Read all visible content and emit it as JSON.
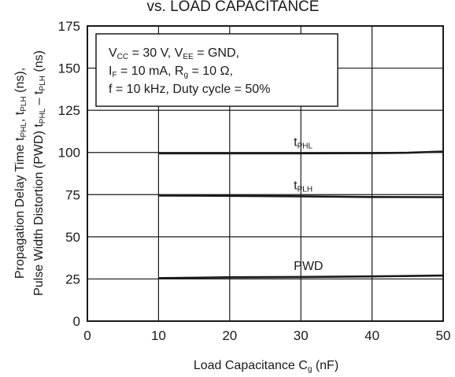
{
  "chart_data": {
    "type": "line",
    "title": "vs. LOAD CAPACITANCE",
    "xlabel": {
      "main": "Load Capacitance  C",
      "sub": "g",
      "unit": " (nF)"
    },
    "ylabel": {
      "line1": [
        "Propagation Delay Time  t",
        "PHL",
        ", t",
        "PLH",
        " (ns),"
      ],
      "line2": [
        "Pulse Width Distortion (PWD)  t",
        "PHL",
        " – t",
        "PLH",
        " (ns)"
      ]
    },
    "xlim": [
      0,
      50
    ],
    "ylim": [
      0,
      175
    ],
    "xticks": [
      0,
      10,
      20,
      30,
      40,
      50
    ],
    "yticks": [
      0,
      25,
      50,
      75,
      100,
      125,
      150,
      175
    ],
    "grid": true,
    "series": [
      {
        "name": "tPHL",
        "label_main": "t",
        "label_sub": "PHL",
        "x": [
          10,
          20,
          30,
          40,
          45,
          50
        ],
        "y": [
          99.5,
          99.5,
          99.5,
          99.6,
          99.8,
          100.5
        ]
      },
      {
        "name": "tPLH",
        "label_main": "t",
        "label_sub": "PLH",
        "x": [
          10,
          20,
          30,
          40,
          50
        ],
        "y": [
          74.5,
          74.3,
          74.0,
          73.6,
          73.5
        ]
      },
      {
        "name": "PWD",
        "label_main": "PWD",
        "label_sub": "",
        "x": [
          10,
          20,
          30,
          40,
          50
        ],
        "y": [
          25.5,
          26.0,
          26.2,
          26.5,
          27.0
        ]
      }
    ],
    "conditions": {
      "line1": [
        "V",
        "CC",
        " = 30 V, V",
        "EE",
        " = GND,"
      ],
      "line2": [
        "I",
        "F",
        " = 10 mA, R",
        "g",
        " = 10 Ω,"
      ],
      "line3": [
        "f = 10 kHz, Duty cycle = 50%"
      ]
    }
  }
}
